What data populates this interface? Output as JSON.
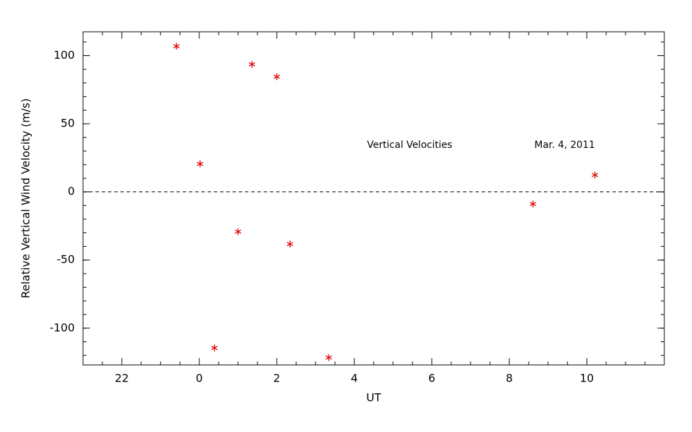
{
  "chart_data": {
    "type": "scatter",
    "xlabel": "UT",
    "ylabel": "Relative Vertical Wind Velocity (m/s)",
    "annotations": [
      "Vertical Velocities",
      "Mar. 4, 2011"
    ],
    "x": [
      -0.59,
      0.02,
      0.39,
      1.0,
      1.36,
      2.0,
      2.34,
      3.34,
      8.61,
      10.21
    ],
    "values": [
      106.9,
      20.6,
      -114.5,
      -29.2,
      93.6,
      84.5,
      -38.3,
      -121.6,
      -8.9,
      12.4
    ],
    "color": "#e00000",
    "xlim": [
      -3,
      12
    ],
    "xticks": [
      {
        "value": -2,
        "label": "22"
      },
      0,
      2,
      4,
      6,
      8,
      10
    ],
    "xminor": 0.5,
    "ylim": [
      -127,
      117.5
    ],
    "yticks": [
      -100,
      -50,
      0,
      50,
      100
    ],
    "yminor": 10,
    "hline": 0,
    "grid": false
  }
}
